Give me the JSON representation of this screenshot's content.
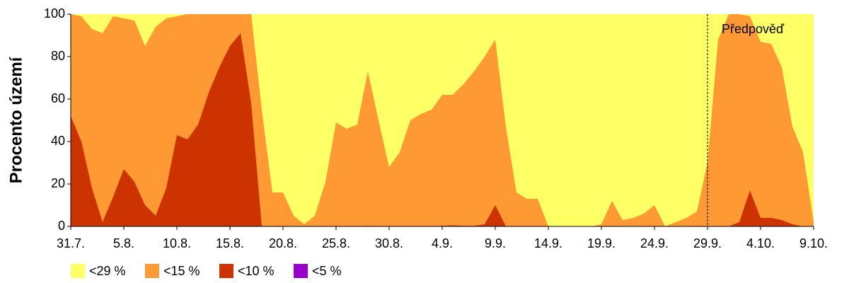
{
  "chart_data": {
    "type": "area",
    "ylabel": "Procento území",
    "categories": [
      "31.7.",
      null,
      null,
      null,
      null,
      "5.8.",
      null,
      null,
      null,
      null,
      "10.8.",
      null,
      null,
      null,
      null,
      "15.8.",
      null,
      null,
      null,
      null,
      "20.8.",
      null,
      null,
      null,
      null,
      "25.8.",
      null,
      null,
      null,
      null,
      "30.8.",
      null,
      null,
      null,
      null,
      "4.9.",
      null,
      null,
      null,
      null,
      "9.9.",
      null,
      null,
      null,
      null,
      "14.9.",
      null,
      null,
      null,
      null,
      "19.9.",
      null,
      null,
      null,
      null,
      "24.9.",
      null,
      null,
      null,
      null,
      "29.9.",
      null,
      null,
      null,
      null,
      "4.10.",
      null,
      null,
      null,
      null,
      "9.10."
    ],
    "ylim": [
      0,
      100
    ],
    "yticks": [
      0,
      20,
      40,
      60,
      80,
      100
    ],
    "forecast": {
      "label": "Předpověď",
      "at": "29.9."
    },
    "series": [
      {
        "name": "<29 %",
        "color": "#ffff66",
        "values": [
          100,
          100,
          100,
          100,
          100,
          100,
          100,
          100,
          100,
          100,
          100,
          100,
          100,
          100,
          100,
          100,
          100,
          100,
          100,
          100,
          100,
          100,
          100,
          100,
          100,
          100,
          100,
          100,
          100,
          100,
          100,
          100,
          100,
          100,
          100,
          100,
          100,
          100,
          100,
          100,
          100,
          100,
          100,
          100,
          100,
          100,
          100,
          100,
          100,
          100,
          100,
          100,
          100,
          100,
          100,
          100,
          100,
          100,
          100,
          100,
          100,
          100,
          100,
          100,
          100,
          100,
          100,
          100,
          100,
          100,
          100
        ]
      },
      {
        "name": "<15 %",
        "color": "#ff9933",
        "values": [
          100,
          99,
          93,
          91,
          99,
          98,
          97,
          85,
          94,
          98,
          99,
          100,
          100,
          100,
          100,
          100,
          100,
          100,
          55,
          16,
          16,
          5,
          1,
          5,
          21,
          49,
          46,
          48,
          73,
          50,
          28,
          35,
          50,
          53,
          55,
          62,
          62,
          67,
          73,
          80,
          88,
          47,
          16,
          13,
          13,
          0,
          0,
          0,
          0,
          0,
          1,
          12,
          3,
          4,
          6,
          10,
          0,
          2,
          4,
          7,
          30,
          88,
          100,
          100,
          99,
          87,
          86,
          75,
          47,
          35,
          2
        ]
      },
      {
        "name": "<10 %",
        "color": "#cc3300",
        "values": [
          52,
          40,
          18,
          2,
          14,
          27,
          21,
          10,
          5,
          18,
          43,
          41,
          48,
          63,
          75,
          85,
          91,
          58,
          0,
          0,
          0,
          0,
          0,
          0,
          0,
          0,
          0,
          0,
          0.3,
          0,
          0,
          0,
          0,
          0,
          0,
          0.3,
          0.5,
          0.3,
          0.3,
          1,
          10,
          0,
          0,
          0,
          0,
          0,
          0,
          0,
          0,
          0,
          0,
          0,
          0,
          0,
          0,
          0,
          0,
          0,
          0,
          0,
          0,
          0,
          0,
          2,
          17,
          4,
          4,
          3,
          1,
          0,
          0
        ]
      },
      {
        "name": "<5 %",
        "color": "#9900cc",
        "values": [
          0,
          0,
          0,
          0,
          0,
          0,
          0,
          0,
          0,
          0,
          0,
          0,
          0,
          0,
          0,
          0,
          0,
          0,
          0,
          0,
          0,
          0,
          0,
          0,
          0,
          0,
          0,
          0,
          0,
          0,
          0,
          0,
          0,
          0,
          0,
          0,
          0,
          0,
          0,
          0,
          0,
          0,
          0,
          0,
          0,
          0,
          0,
          0,
          0,
          0,
          0,
          0,
          0,
          0,
          0,
          0,
          0,
          0,
          0,
          0,
          0,
          0,
          0,
          0,
          0,
          0,
          0,
          0,
          0,
          0,
          0
        ]
      }
    ]
  }
}
